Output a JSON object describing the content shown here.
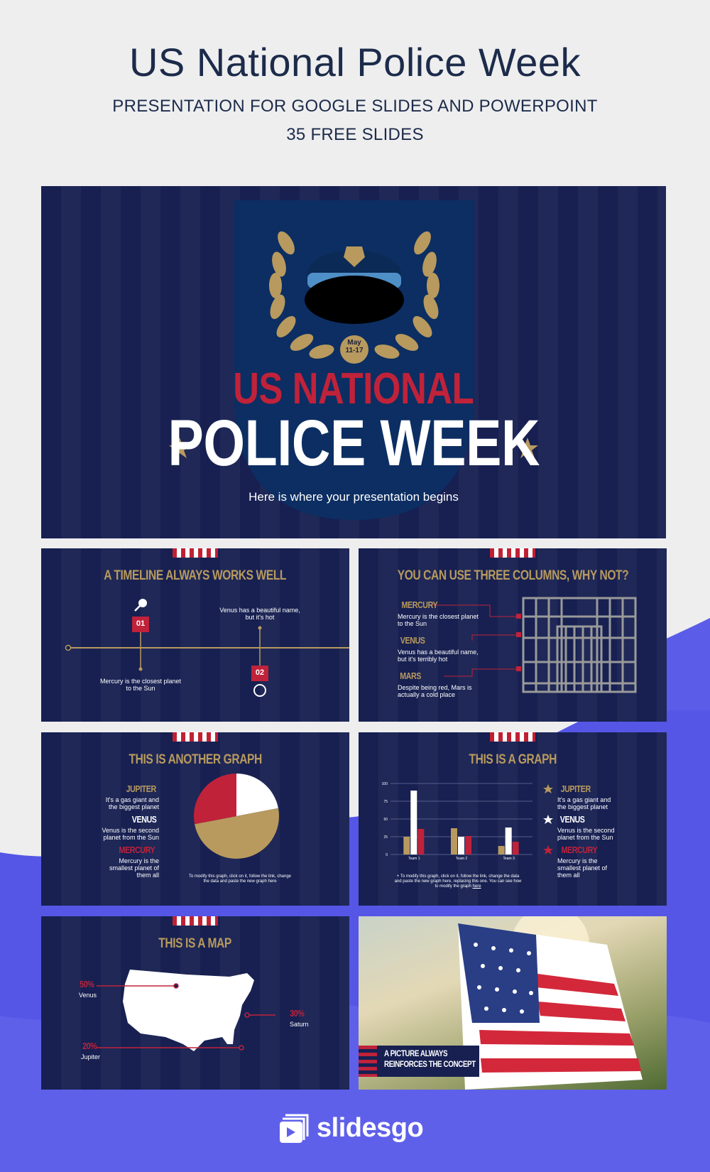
{
  "header": {
    "title": "US National Police Week",
    "subtitle": "PRESENTATION FOR GOOGLE SLIDES AND POWERPOINT",
    "slides_count": "35 FREE SLIDES"
  },
  "colors": {
    "navy": "#172051",
    "gold": "#b89a5e",
    "red": "#c0223a",
    "accent_blue": "#5b5ce8"
  },
  "cover": {
    "badge_date": "May\n11-17",
    "badge_month": "May",
    "badge_days": "11-17",
    "line1": "US NATIONAL",
    "line2": "POLICE WEEK",
    "tagline": "Here is where your presentation begins"
  },
  "timeline": {
    "title": "A TIMELINE ALWAYS WORKS WELL",
    "step1_num": "01",
    "step1_text_a": "Mercury is the closest planet",
    "step1_text_b": "to the Sun",
    "step2_num": "02",
    "step2_text_a": "Venus has a beautiful name,",
    "step2_text_b": "but it's hot"
  },
  "columns": {
    "title": "YOU CAN USE THREE COLUMNS, WHY NOT?",
    "items": [
      {
        "name": "MERCURY",
        "text_a": "Mercury is the closest planet",
        "text_b": "to the Sun"
      },
      {
        "name": "VENUS",
        "text_a": "Venus has a beautiful name,",
        "text_b": "but it's terribly hot"
      },
      {
        "name": "MARS",
        "text_a": "Despite being red, Mars is",
        "text_b": "actually a cold place"
      }
    ]
  },
  "pie_slide": {
    "title": "THIS IS ANOTHER GRAPH",
    "items": [
      {
        "name": "JUPITER",
        "text_a": "It's a gas giant and",
        "text_b": "the biggest planet",
        "text_c": ""
      },
      {
        "name": "VENUS",
        "text_a": "Venus is the second",
        "text_b": "planet from the Sun",
        "text_c": ""
      },
      {
        "name": "MERCURY",
        "text_a": "Mercury is the",
        "text_b": "smallest planet of",
        "text_c": "them all"
      }
    ],
    "note_a": "To modify this graph, click on it, follow the link, change",
    "note_b": "the data and paste the new graph here"
  },
  "bar_slide": {
    "title": "THIS IS A GRAPH",
    "items": [
      {
        "name": "JUPITER",
        "text_a": "It's a gas giant and",
        "text_b": "the biggest planet",
        "text_c": ""
      },
      {
        "name": "VENUS",
        "text_a": "Venus is the second",
        "text_b": "planet from the Sun",
        "text_c": ""
      },
      {
        "name": "MERCURY",
        "text_a": "Mercury is the",
        "text_b": "smallest planet of",
        "text_c": "them all"
      }
    ],
    "note_a": "+ To modify this graph, click on it, follow the link, change the data",
    "note_b": "and paste the new graph here, replacing this one. You can see how",
    "note_c": "to modify the graph",
    "note_link": "here"
  },
  "map_slide": {
    "title": "THIS IS A MAP",
    "points": [
      {
        "pct": "50%",
        "label": "Venus"
      },
      {
        "pct": "30%",
        "label": "Saturn"
      },
      {
        "pct": "20%",
        "label": "Jupiter"
      }
    ]
  },
  "photo_slide": {
    "caption_a": "A PICTURE ALWAYS",
    "caption_b": "REINFORCES THE CONCEPT"
  },
  "chart_data": [
    {
      "type": "pie",
      "labels": [
        "",
        "",
        ""
      ],
      "values": [
        22,
        50,
        28
      ],
      "colors": [
        "#ffffff",
        "#b89a5e",
        "#c0223a"
      ]
    },
    {
      "type": "bar",
      "categories": [
        "Team 1",
        "Team 2",
        "Team 3"
      ],
      "series": [
        {
          "values": [
            25,
            37,
            12
          ],
          "color": "#b89a5e"
        },
        {
          "values": [
            90,
            25,
            38
          ],
          "color": "#ffffff"
        },
        {
          "values": [
            36,
            26,
            18
          ],
          "color": "#c0223a"
        }
      ],
      "yticks": [
        "0",
        "25",
        "50",
        "75",
        "100"
      ],
      "ylim": [
        0,
        100
      ],
      "grid": true
    }
  ],
  "footer": {
    "brand": "slidesgo"
  }
}
